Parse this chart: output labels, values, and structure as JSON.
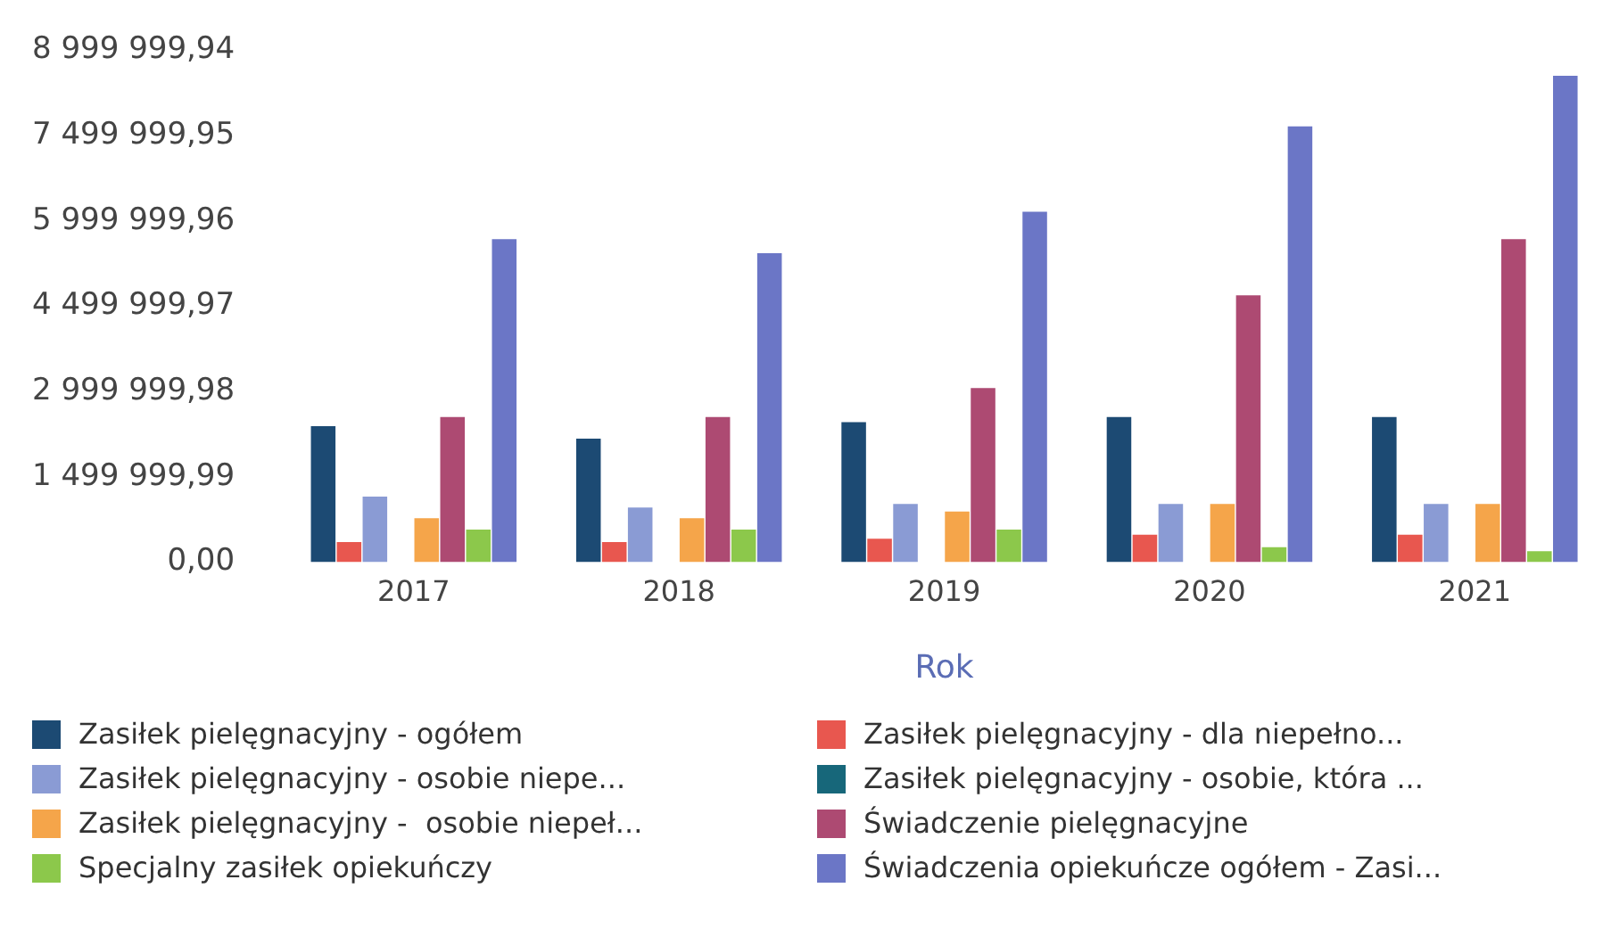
{
  "chart_data": {
    "type": "bar",
    "xlabel": "Rok",
    "categories": [
      "2017",
      "2018",
      "2019",
      "2020",
      "2021"
    ],
    "series": [
      {
        "name": "Zasiłek pielęgnacyjny - ogółem",
        "color": "#1c4a73",
        "values": [
          2390000,
          2170000,
          2460000,
          2550000,
          2550000
        ]
      },
      {
        "name": "Zasiłek pielęgnacyjny - dla niepełno...",
        "color": "#e8574f",
        "values": [
          350000,
          350000,
          410000,
          480000,
          480000
        ]
      },
      {
        "name": "Zasiłek pielęgnacyjny - osobie niepe...",
        "color": "#8a9bd4",
        "values": [
          1150000,
          960000,
          1020000,
          1020000,
          1020000
        ]
      },
      {
        "name": "Zasiłek pielęgnacyjny - osobie, która ...",
        "color": "#17677a",
        "values": [
          0,
          0,
          0,
          0,
          0
        ]
      },
      {
        "name": "Zasiłek pielęgnacyjny -  osobie niepeł...",
        "color": "#f5a54a",
        "values": [
          770000,
          770000,
          890000,
          1020000,
          1020000
        ]
      },
      {
        "name": "Świadczenie pielęgnacyjne",
        "color": "#ad4a72",
        "values": [
          2550000,
          2550000,
          3060000,
          4690000,
          5680000
        ]
      },
      {
        "name": "Specjalny zasiłek opiekuńczy",
        "color": "#8cc84b",
        "values": [
          570000,
          570000,
          570000,
          260000,
          190000
        ]
      },
      {
        "name": "Świadczenia opiekuńcze ogółem - Zasi...",
        "color": "#6b76c6",
        "values": [
          5680000,
          5430000,
          6160000,
          7660000,
          8550000
        ]
      }
    ],
    "ylim": [
      0,
      8999999.94
    ],
    "yticks": [
      {
        "value": 0,
        "label": "0,00"
      },
      {
        "value": 1499999.99,
        "label": "1 499 999,99"
      },
      {
        "value": 2999999.98,
        "label": "2 999 999,98"
      },
      {
        "value": 4499999.97,
        "label": "4 499 999,97"
      },
      {
        "value": 5999999.96,
        "label": "5 999 999,96"
      },
      {
        "value": 7499999.95,
        "label": "7 499 999,95"
      },
      {
        "value": 8999999.94,
        "label": "8 999 999,94"
      }
    ],
    "grid": false,
    "legend": "bottom"
  }
}
